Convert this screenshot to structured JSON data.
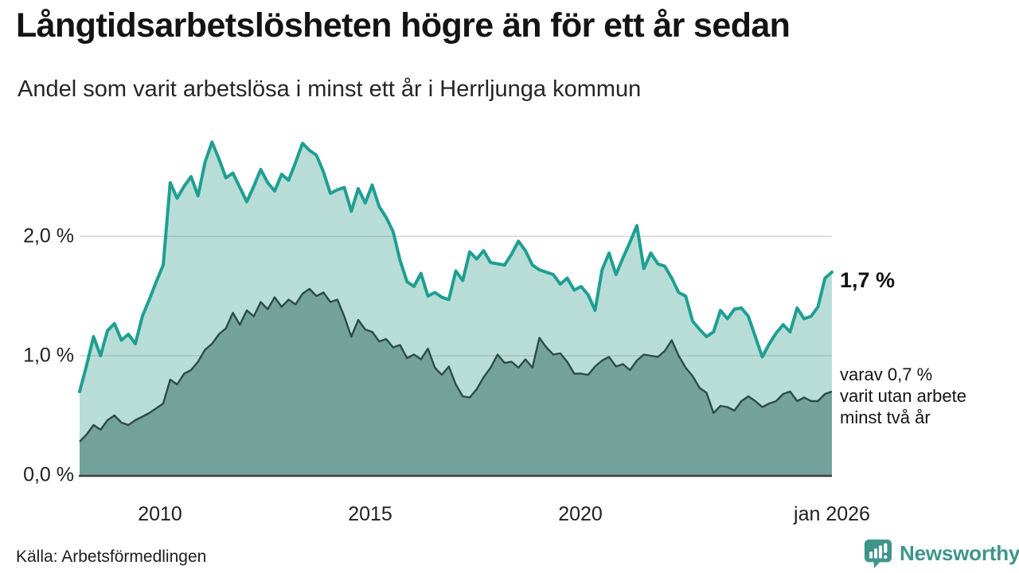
{
  "header": {
    "title": "Långtidsarbetslösheten högre än för ett år sedan",
    "subtitle": "Andel som varit arbetslösa i minst ett år i Herrljunga kommun"
  },
  "chart_data": {
    "type": "area",
    "title": "Långtidsarbetslösheten högre än för ett år sedan",
    "subtitle": "Andel som varit arbetslösa i minst ett år i Herrljunga kommun",
    "unit": "%",
    "x_start": 2008.08,
    "x_end": 2026.0,
    "points_per_year": 6,
    "ylim": [
      0,
      2.98
    ],
    "grid_on": true,
    "grid_values": [
      1,
      2
    ],
    "y_ticks": [
      {
        "value": 0,
        "label": "0,0 %"
      },
      {
        "value": 1,
        "label": "1,0 %"
      },
      {
        "value": 2,
        "label": "2,0 %"
      }
    ],
    "x_ticks": [
      {
        "value": 2010,
        "label": "2010"
      },
      {
        "value": 2015,
        "label": "2015"
      },
      {
        "value": 2020,
        "label": "2020"
      },
      {
        "value": 2026,
        "label": "jan 2026"
      }
    ],
    "series": [
      {
        "name": "Arbetslösa minst ett år",
        "line_color": "#1e9f92",
        "fill_color": "#b8ddd7",
        "end_value": 1.7,
        "values": [
          0.7,
          0.92,
          1.16,
          1.0,
          1.21,
          1.27,
          1.13,
          1.18,
          1.1,
          1.33,
          1.47,
          1.62,
          1.76,
          2.45,
          2.32,
          2.42,
          2.5,
          2.34,
          2.62,
          2.79,
          2.65,
          2.49,
          2.53,
          2.41,
          2.29,
          2.42,
          2.56,
          2.45,
          2.38,
          2.52,
          2.47,
          2.62,
          2.78,
          2.72,
          2.68,
          2.54,
          2.36,
          2.39,
          2.41,
          2.21,
          2.4,
          2.28,
          2.43,
          2.25,
          2.16,
          2.04,
          1.8,
          1.62,
          1.58,
          1.69,
          1.5,
          1.53,
          1.49,
          1.47,
          1.71,
          1.63,
          1.87,
          1.81,
          1.88,
          1.78,
          1.77,
          1.76,
          1.85,
          1.96,
          1.88,
          1.76,
          1.72,
          1.7,
          1.68,
          1.6,
          1.65,
          1.55,
          1.58,
          1.51,
          1.38,
          1.72,
          1.86,
          1.68,
          1.82,
          1.95,
          2.09,
          1.73,
          1.86,
          1.77,
          1.75,
          1.65,
          1.53,
          1.5,
          1.29,
          1.22,
          1.16,
          1.2,
          1.38,
          1.31,
          1.39,
          1.4,
          1.33,
          1.16,
          0.99,
          1.1,
          1.19,
          1.26,
          1.2,
          1.4,
          1.31,
          1.33,
          1.41,
          1.65,
          1.7
        ]
      },
      {
        "name": "varav utan arbete minst två år",
        "line_color": "#2d4b46",
        "fill_color": "#73a29a",
        "end_value": 0.7,
        "values": [
          0.28,
          0.34,
          0.42,
          0.38,
          0.46,
          0.5,
          0.44,
          0.42,
          0.46,
          0.49,
          0.52,
          0.56,
          0.6,
          0.8,
          0.76,
          0.85,
          0.88,
          0.95,
          1.05,
          1.1,
          1.18,
          1.23,
          1.36,
          1.26,
          1.38,
          1.33,
          1.45,
          1.39,
          1.49,
          1.41,
          1.47,
          1.43,
          1.52,
          1.56,
          1.5,
          1.53,
          1.45,
          1.47,
          1.33,
          1.16,
          1.3,
          1.22,
          1.2,
          1.12,
          1.14,
          1.07,
          1.09,
          0.98,
          1.01,
          0.97,
          1.06,
          0.9,
          0.84,
          0.91,
          0.76,
          0.66,
          0.65,
          0.72,
          0.82,
          0.9,
          1.01,
          0.94,
          0.95,
          0.9,
          0.97,
          0.9,
          1.15,
          1.07,
          1.01,
          1.02,
          0.95,
          0.85,
          0.85,
          0.84,
          0.91,
          0.96,
          0.99,
          0.91,
          0.93,
          0.88,
          0.96,
          1.01,
          1.0,
          0.99,
          1.04,
          1.13,
          1.0,
          0.9,
          0.83,
          0.73,
          0.69,
          0.52,
          0.58,
          0.57,
          0.54,
          0.62,
          0.66,
          0.62,
          0.57,
          0.6,
          0.62,
          0.68,
          0.7,
          0.62,
          0.65,
          0.62,
          0.62,
          0.68,
          0.7
        ]
      }
    ],
    "annotations": {
      "end_value_label": "1,7 %",
      "series2_note_lines": [
        "varav 0,7 %",
        "varit utan arbete",
        "minst två år"
      ]
    }
  },
  "footer": {
    "source": "Källa: Arbetsförmedlingen",
    "logo_text": "Newsworthy"
  },
  "colors": {
    "series1_line": "#1e9f92",
    "series1_fill": "#b8ddd7",
    "series2_line": "#2d4b46",
    "series2_fill": "#73a29a",
    "gridline": "#d6d6d6",
    "axis_line": "#3d3d3d",
    "logo_teal": "#3f958b",
    "text": "#1a1a1a"
  }
}
